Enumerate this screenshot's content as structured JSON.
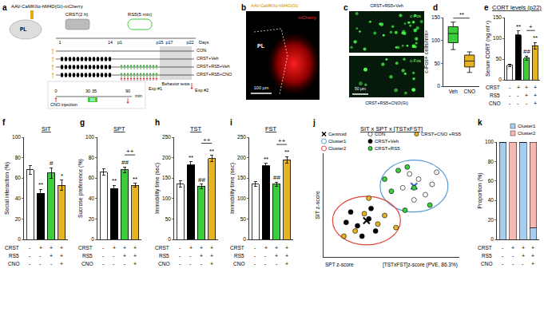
{
  "panel_labels": [
    "a",
    "b",
    "c",
    "d",
    "e",
    "f",
    "g",
    "h",
    "i",
    "j",
    "k"
  ],
  "diagram": {
    "virus": "AAV-CaMKIIα-hM4D(Gi)-mCherry",
    "region": "PL",
    "stress": "CRST(2 h)",
    "relief": "RS5(5 min)",
    "day_ticks": [
      "1",
      "14",
      "p1",
      "p15",
      "p17",
      "p22"
    ],
    "day_unit": "Days",
    "groups": [
      "CON",
      "CRST+Veh",
      "CRST+RS5+Veh",
      "CRST+RS5+CNO"
    ],
    "behavior": "Behavior tests",
    "exp2": "Exp #2",
    "exp1": "Exp #1",
    "exp1_ticks": [
      "0",
      "30",
      "35",
      "90"
    ],
    "exp1_unit": "min",
    "exp1_event": "CNO injection",
    "exp1_rs": "RS"
  },
  "images": {
    "b": {
      "label": "AAV-CaMKIIα-hM4D(Gi)",
      "region": "PL",
      "marker": "mCherry",
      "scale": "100 μm"
    },
    "c": {
      "top": "CRST+RS5+Veh",
      "bottom": "CRST+RS5+CNO(Gi)",
      "stain": "c-Fos",
      "scale": "50 μm"
    }
  },
  "conditions": {
    "rows": [
      {
        "label": "CRST",
        "marks": [
          "-",
          "+",
          "+",
          "+"
        ]
      },
      {
        "label": "RS5",
        "marks": [
          "-",
          "-",
          "+",
          "+"
        ]
      },
      {
        "label": "CNO",
        "marks": [
          "-",
          "-",
          "-",
          "+"
        ]
      }
    ]
  },
  "chart_data": [
    {
      "type": "box",
      "categories": [
        "Veh",
        "CNO"
      ],
      "colors": [
        "#3ccc3c",
        "#e6b422"
      ],
      "boxes": [
        {
          "min": 80,
          "q1": 95,
          "median": 115,
          "q3": 130,
          "max": 140
        },
        {
          "min": 30,
          "q1": 42,
          "median": 55,
          "q3": 68,
          "max": 75
        }
      ],
      "y_label": "c-Fos+ cells/mm²",
      "ylim": [
        0,
        150
      ],
      "yticks": [
        0,
        50,
        100,
        150
      ],
      "comparison": {
        "between": [
          0,
          1
        ],
        "label": "**"
      }
    },
    {
      "type": "bar",
      "title": "CORT levels (p22)",
      "y_label": "Serum CORT (ng ml⁻¹)",
      "categories": [
        null,
        null,
        null,
        null
      ],
      "values": [
        35,
        108,
        52,
        82
      ],
      "errors": [
        3,
        10,
        5,
        8
      ],
      "colors": [
        "#ffffff",
        "#000000",
        "#3ccc3c",
        "#e6b422"
      ],
      "ylim": [
        0,
        150
      ],
      "yticks": [
        0,
        50,
        100,
        150
      ],
      "tick_labels": "y",
      "significance": [
        null,
        "**",
        "##",
        "**"
      ],
      "comparison": {
        "between": [
          2,
          3
        ],
        "label": "+"
      }
    },
    {
      "type": "bar",
      "title": "SIT",
      "y_label": "Social interaction (%)",
      "categories": [
        null,
        null,
        null,
        null
      ],
      "values": [
        68,
        45,
        65,
        53
      ],
      "errors": [
        4,
        4,
        5,
        5
      ],
      "colors": [
        "#ffffff",
        "#000000",
        "#3ccc3c",
        "#e6b422"
      ],
      "ylim": [
        0,
        100
      ],
      "yticks": [
        0,
        20,
        40,
        60,
        80,
        100
      ],
      "tick_labels": "y",
      "significance": [
        null,
        "**",
        "#",
        "*"
      ]
    },
    {
      "type": "bar",
      "title": "SPT",
      "y_label": "Sucrose preference (%)",
      "categories": [
        null,
        null,
        null,
        null
      ],
      "values": [
        66,
        50,
        68,
        53
      ],
      "errors": [
        3,
        3,
        3,
        2
      ],
      "colors": [
        "#ffffff",
        "#000000",
        "#3ccc3c",
        "#e6b422"
      ],
      "ylim": [
        0,
        100
      ],
      "yticks": [
        0,
        20,
        40,
        60,
        80,
        100
      ],
      "tick_labels": "y",
      "significance": [
        null,
        "**",
        "##",
        "**"
      ],
      "comparison": {
        "between": [
          2,
          3
        ],
        "label": "++"
      }
    },
    {
      "type": "bar",
      "title": "TST",
      "y_label": "Immobility time (sec)",
      "categories": [
        null,
        null,
        null,
        null
      ],
      "values": [
        135,
        182,
        130,
        198
      ],
      "errors": [
        8,
        8,
        5,
        8
      ],
      "colors": [
        "#ffffff",
        "#000000",
        "#3ccc3c",
        "#e6b422"
      ],
      "ylim": [
        0,
        250
      ],
      "yticks": [
        0,
        50,
        100,
        150,
        200,
        250
      ],
      "tick_labels": "y",
      "significance": [
        null,
        "**",
        "##",
        "**"
      ],
      "comparison": {
        "between": [
          2,
          3
        ],
        "label": "++"
      }
    },
    {
      "type": "bar",
      "title": "FST",
      "y_label": "Immobility time (sec)",
      "categories": [
        null,
        null,
        null,
        null
      ],
      "values": [
        135,
        180,
        135,
        195
      ],
      "errors": [
        6,
        6,
        5,
        8
      ],
      "colors": [
        "#ffffff",
        "#000000",
        "#3ccc3c",
        "#e6b422"
      ],
      "ylim": [
        0,
        250
      ],
      "yticks": [
        0,
        50,
        100,
        150,
        200,
        250
      ],
      "tick_labels": "y",
      "significance": [
        null,
        "**",
        "##",
        "**"
      ],
      "comparison": {
        "between": [
          2,
          3
        ],
        "label": "++"
      }
    },
    {
      "type": "scatter",
      "title": "SIT x SPT x [TSTxFST]",
      "x_label": "[TSTxFST]z-score (PVE, 86.3%)",
      "y_label": "SIT z-score",
      "z_label": "SPT z-score",
      "xlim": [
        -3,
        3
      ],
      "ylim": [
        -3,
        3
      ],
      "tick_labels": false,
      "series": [
        {
          "name": "Centroid",
          "marker": "x",
          "colors": [
            "#3a5fcd",
            "#000000"
          ],
          "x": [
            1.0,
            -1.1
          ],
          "y": [
            1.1,
            -0.9
          ]
        },
        {
          "name": "CON",
          "marker": "circle",
          "color": "#ffffff",
          "x": [
            1.2,
            1.8,
            0.8,
            1.5,
            2.0,
            0.5,
            1.0
          ],
          "y": [
            1.5,
            1.2,
            1.8,
            0.6,
            1.9,
            1.0,
            0.3
          ]
        },
        {
          "name": "CRST+Veh",
          "marker": "circle",
          "color": "#000000",
          "x": [
            -1.5,
            -1.0,
            -2.0,
            -1.3,
            -0.7,
            -1.8,
            -0.9
          ],
          "y": [
            -1.2,
            -0.8,
            -1.0,
            -1.8,
            -1.5,
            -0.4,
            -0.2
          ]
        },
        {
          "name": "CRST+RS5",
          "marker": "circle",
          "color": "#3ccc3c",
          "x": [
            0.3,
            1.0,
            0.0,
            1.7,
            -0.3,
            0.6,
            0.7
          ],
          "y": [
            2.0,
            1.0,
            0.8,
            0.0,
            1.5,
            -0.3,
            2.2
          ]
        },
        {
          "name": "CRST+CNO +RS5",
          "marker": "circle",
          "color": "#e6b422",
          "x": [
            -1.2,
            -0.6,
            -1.6,
            -0.3,
            -1.0,
            -2.1,
            0.2
          ],
          "y": [
            -0.5,
            -1.1,
            -1.5,
            -0.6,
            0.4,
            -1.8,
            -1.3
          ]
        }
      ],
      "clusters": [
        {
          "name": "Cluster1",
          "color": "#5b9bd5",
          "center": [
            1.0,
            1.1
          ],
          "radii": [
            1.5,
            1.5
          ]
        },
        {
          "name": "Cluster2",
          "color": "#e0463c",
          "center": [
            -1.1,
            -0.9
          ],
          "radii": [
            1.5,
            1.4
          ]
        }
      ]
    },
    {
      "type": "bar",
      "stacked": true,
      "categories": [
        null,
        null,
        null,
        null
      ],
      "y_label": "Proportion (%)",
      "series": [
        {
          "name": "Cluster1",
          "color": "#a9cdef",
          "values": [
            100,
            0,
            100,
            12
          ]
        },
        {
          "name": "Cluster2",
          "color": "#f5b7b1",
          "values": [
            0,
            100,
            0,
            88
          ]
        }
      ],
      "ylim": [
        0,
        100
      ],
      "yticks": [
        0,
        20,
        40,
        60,
        80,
        100
      ],
      "tick_labels": "y",
      "legend": "top right"
    }
  ]
}
